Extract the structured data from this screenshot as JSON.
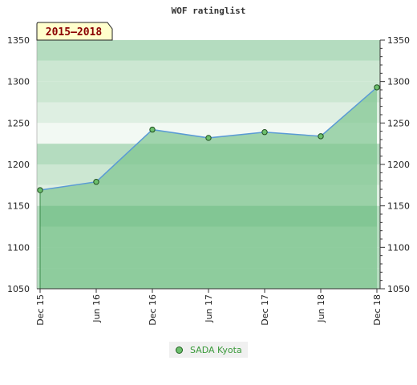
{
  "chart_data": {
    "type": "area",
    "title": "WOF ratinglist",
    "badge": "2015–2018",
    "x_labels": [
      "Dec 15",
      "Jun 16",
      "Dec 16",
      "Jun 17",
      "Dec 17",
      "Jun 18",
      "Dec 18"
    ],
    "ylim": [
      1050,
      1350
    ],
    "y_ticks": [
      1050,
      1100,
      1150,
      1200,
      1250,
      1300,
      1350
    ],
    "y_axis_both_sides": true,
    "series": [
      {
        "name": "SADA Kyota",
        "color": "#5b9bd5",
        "marker_color": "#6cbf6c",
        "points": [
          {
            "x": "Dec 15",
            "y": 1169
          },
          {
            "x": "Jun 16",
            "y": 1179
          },
          {
            "x": "Dec 16",
            "y": 1242
          },
          {
            "x": "Jun 17",
            "y": 1232
          },
          {
            "x": "Dec 17",
            "y": 1239
          },
          {
            "x": "Jun 18",
            "y": 1234
          },
          {
            "x": "Dec 18",
            "y": 1293
          }
        ]
      }
    ],
    "legend_position": "bottom-center",
    "band_colors": [
      "#b4dcbf",
      "#cce7d2",
      "#deefe2",
      "#f2f9f3",
      "#b4dcbf"
    ]
  }
}
